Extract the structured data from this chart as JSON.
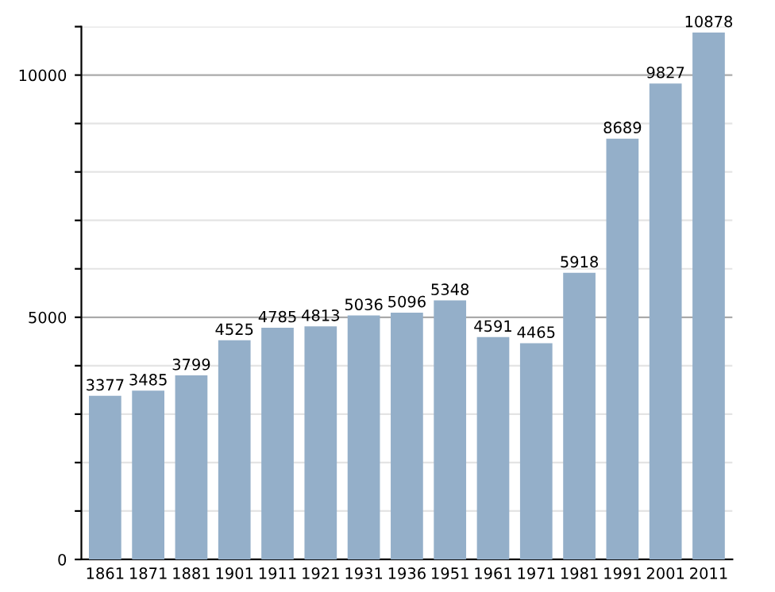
{
  "chart_data": {
    "type": "bar",
    "categories": [
      "1861",
      "1871",
      "1881",
      "1901",
      "1911",
      "1921",
      "1931",
      "1936",
      "1951",
      "1961",
      "1971",
      "1981",
      "1991",
      "2001",
      "2011"
    ],
    "values": [
      3377,
      3485,
      3799,
      4525,
      4785,
      4813,
      5036,
      5096,
      5348,
      4591,
      4465,
      5918,
      8689,
      9827,
      10878
    ],
    "color": "#94afc9",
    "data_labels": true,
    "ylim": [
      0,
      11000
    ],
    "yticks": [
      0,
      {
        "value": 1000,
        "label": null
      },
      {
        "value": 2000,
        "label": null
      },
      {
        "value": 3000,
        "label": null
      },
      {
        "value": 4000,
        "label": null
      },
      5000,
      {
        "value": 6000,
        "label": null
      },
      {
        "value": 7000,
        "label": null
      },
      {
        "value": 8000,
        "label": null
      },
      {
        "value": 9000,
        "label": null
      },
      10000,
      {
        "value": 11000,
        "label": null
      }
    ],
    "grid": "y"
  }
}
